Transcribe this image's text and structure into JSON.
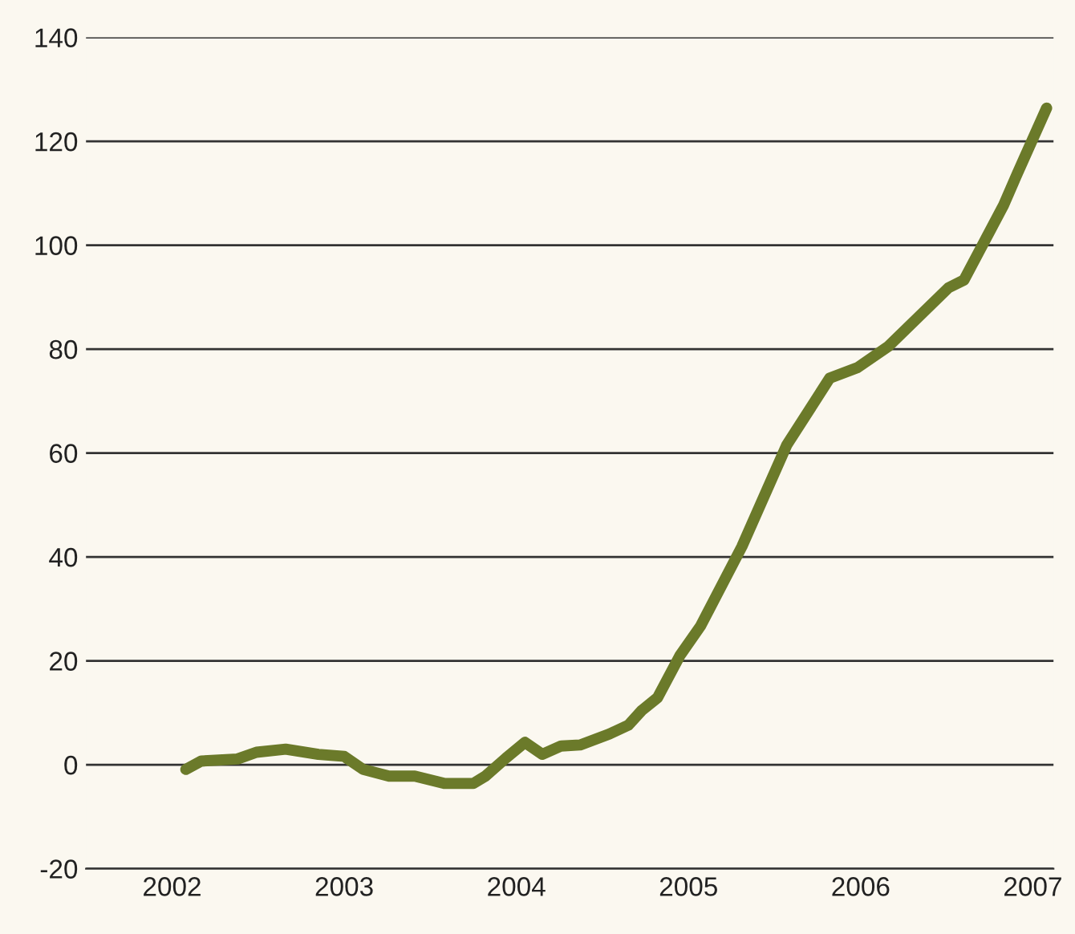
{
  "chart_data": {
    "type": "line",
    "x": [
      2002.08,
      2002.17,
      2002.38,
      2002.49,
      2002.66,
      2002.85,
      2003.0,
      2003.11,
      2003.26,
      2003.41,
      2003.58,
      2003.75,
      2003.82,
      2003.94,
      2004.05,
      2004.15,
      2004.26,
      2004.37,
      2004.54,
      2004.65,
      2004.73,
      2004.82,
      2004.95,
      2005.07,
      2005.31,
      2005.57,
      2005.82,
      2005.98,
      2006.16,
      2006.51,
      2006.6,
      2006.83,
      2006.91,
      2007.08
    ],
    "series": [
      {
        "color": "#6b7a2a",
        "values": [
          -0.9,
          0.7,
          1.1,
          2.4,
          3.0,
          2.0,
          1.6,
          -0.9,
          -2.2,
          -2.2,
          -3.6,
          -3.6,
          -2.2,
          1.3,
          4.3,
          2.0,
          3.6,
          3.8,
          5.9,
          7.6,
          10.5,
          12.9,
          21,
          26.7,
          42,
          61.5,
          74.4,
          76.4,
          80.5,
          91.8,
          93.3,
          107.7,
          113.8,
          126.4
        ]
      }
    ],
    "xlim": [
      2001.5,
      2007.12
    ],
    "xticks": [
      2002,
      2003,
      2004,
      2005,
      2006,
      2007
    ],
    "ylim": [
      -20,
      140
    ],
    "yticks": [
      -20,
      0,
      20,
      40,
      60,
      80,
      100,
      120,
      140
    ],
    "grid": "y",
    "marker": "none",
    "line_style": "solid"
  }
}
